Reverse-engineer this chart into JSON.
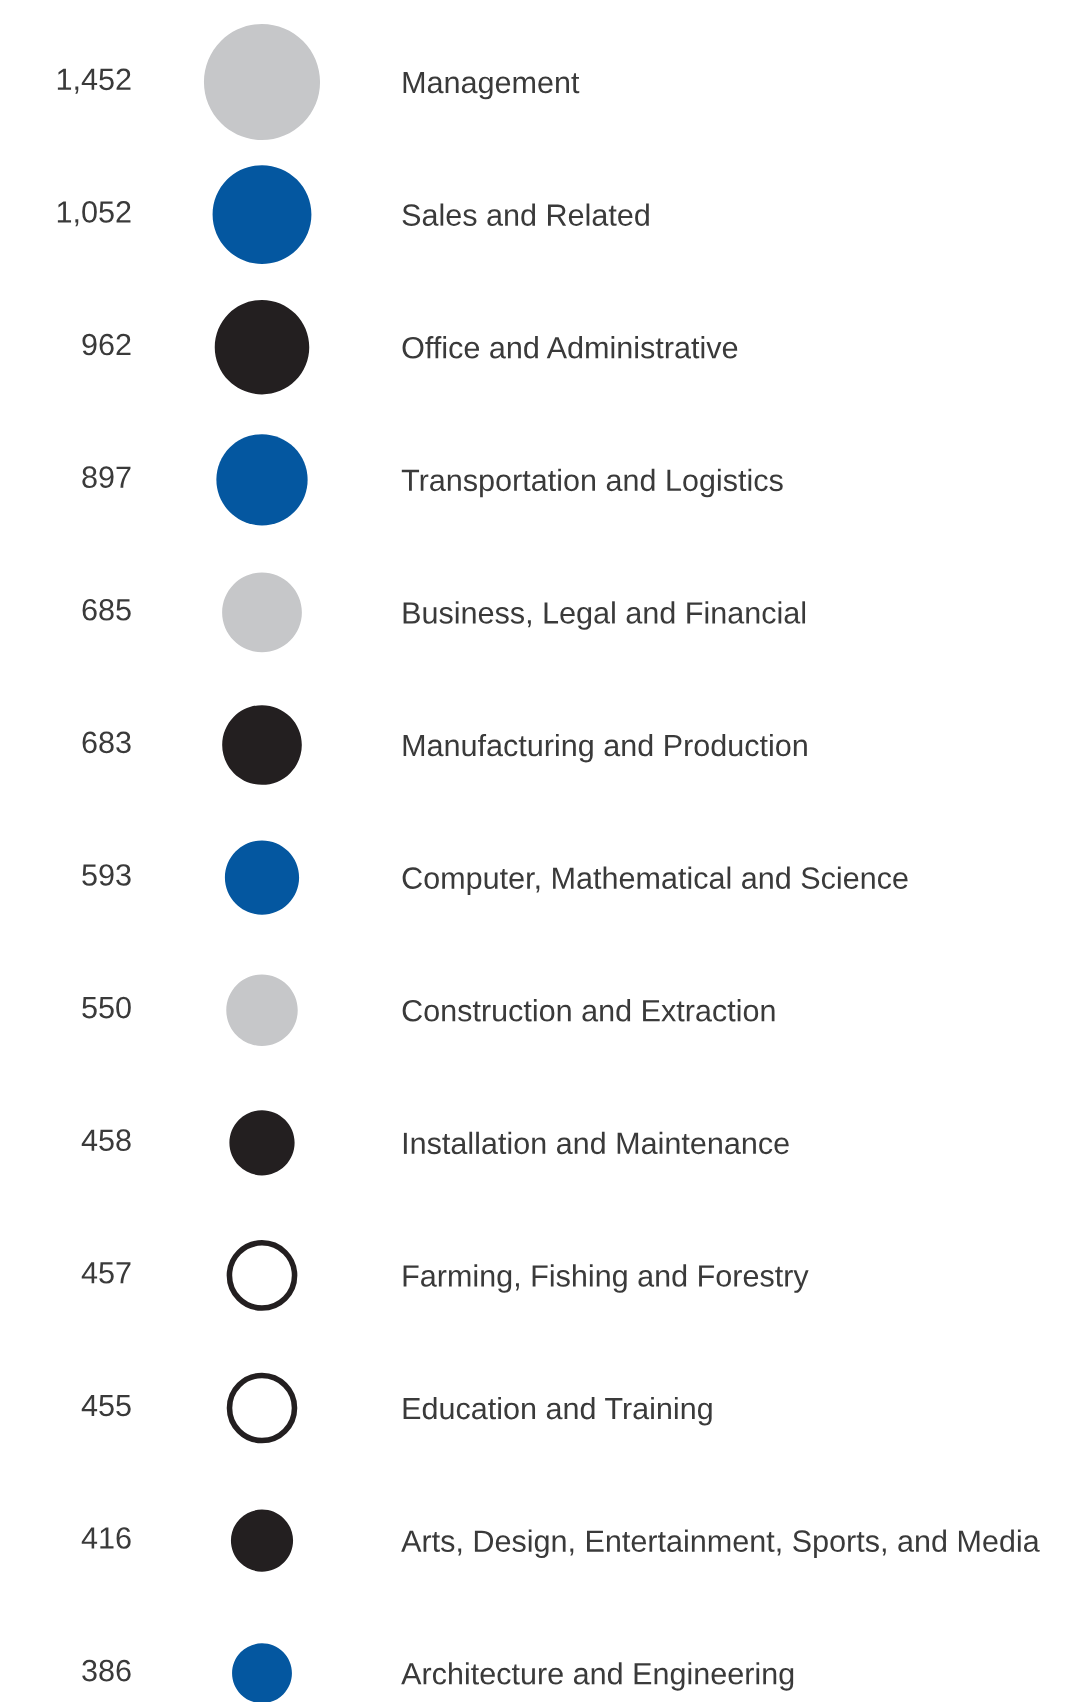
{
  "chart_data": {
    "type": "other",
    "categories": [
      "Management",
      "Sales and Related",
      "Office and Administrative",
      "Transportation and Logistics",
      "Business, Legal and Financial",
      "Manufacturing and Production",
      "Computer, Mathematical and Science",
      "Construction and Extraction",
      "Installation and Maintenance",
      "Farming, Fishing and Forestry",
      "Education and Training",
      "Arts, Design, Entertainment, Sports, and Media",
      "Architecture and Engineering"
    ],
    "values": [
      1452,
      1052,
      962,
      897,
      685,
      683,
      593,
      550,
      458,
      457,
      455,
      416,
      386
    ],
    "value_labels": [
      "1,452",
      "1,052",
      "962",
      "897",
      "685",
      "683",
      "593",
      "550",
      "458",
      "457",
      "455",
      "416",
      "386"
    ],
    "colors": [
      "#c6c7c9",
      "#0457a0",
      "#231f20",
      "#0457a0",
      "#c6c7c9",
      "#231f20",
      "#0457a0",
      "#c6c7c9",
      "#231f20",
      "#ffffff",
      "#ffffff",
      "#231f20",
      "#0457a0"
    ]
  }
}
